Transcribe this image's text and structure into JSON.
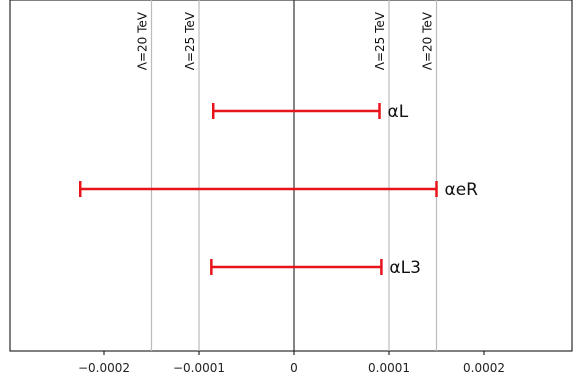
{
  "chart_data": {
    "type": "errorbar",
    "title": "",
    "xlabel": "",
    "ylabel": "",
    "xlim": [
      -0.000288,
      0.000285
    ],
    "grid": false,
    "x_ticks": [
      {
        "value": -0.0002,
        "label": "−0.0002"
      },
      {
        "value": -0.0001,
        "label": "−0.0001"
      },
      {
        "value": 0,
        "label": "0"
      },
      {
        "value": 0.0001,
        "label": "0.0001"
      },
      {
        "value": 0.0002,
        "label": "0.0002"
      }
    ],
    "reference_lines": [
      {
        "x": -0.00015,
        "label": "Λ=20 TeV",
        "color": "#bbbbbb"
      },
      {
        "x": -0.0001,
        "label": "Λ=25 TeV",
        "color": "#bbbbbb"
      },
      {
        "x": 0,
        "label": "",
        "color": "#333333"
      },
      {
        "x": 0.0001,
        "label": "Λ=25 TeV",
        "color": "#bbbbbb"
      },
      {
        "x": 0.00015,
        "label": "Λ=20 TeV",
        "color": "#bbbbbb"
      }
    ],
    "intervals": [
      {
        "name": "αL",
        "low": -8.5e-05,
        "high": 9e-05
      },
      {
        "name": "αeR",
        "low": -0.000225,
        "high": 0.00015
      },
      {
        "name": "αL3",
        "low": -8.7e-05,
        "high": 9.2e-05
      }
    ],
    "bar_color": "#e8141c"
  }
}
